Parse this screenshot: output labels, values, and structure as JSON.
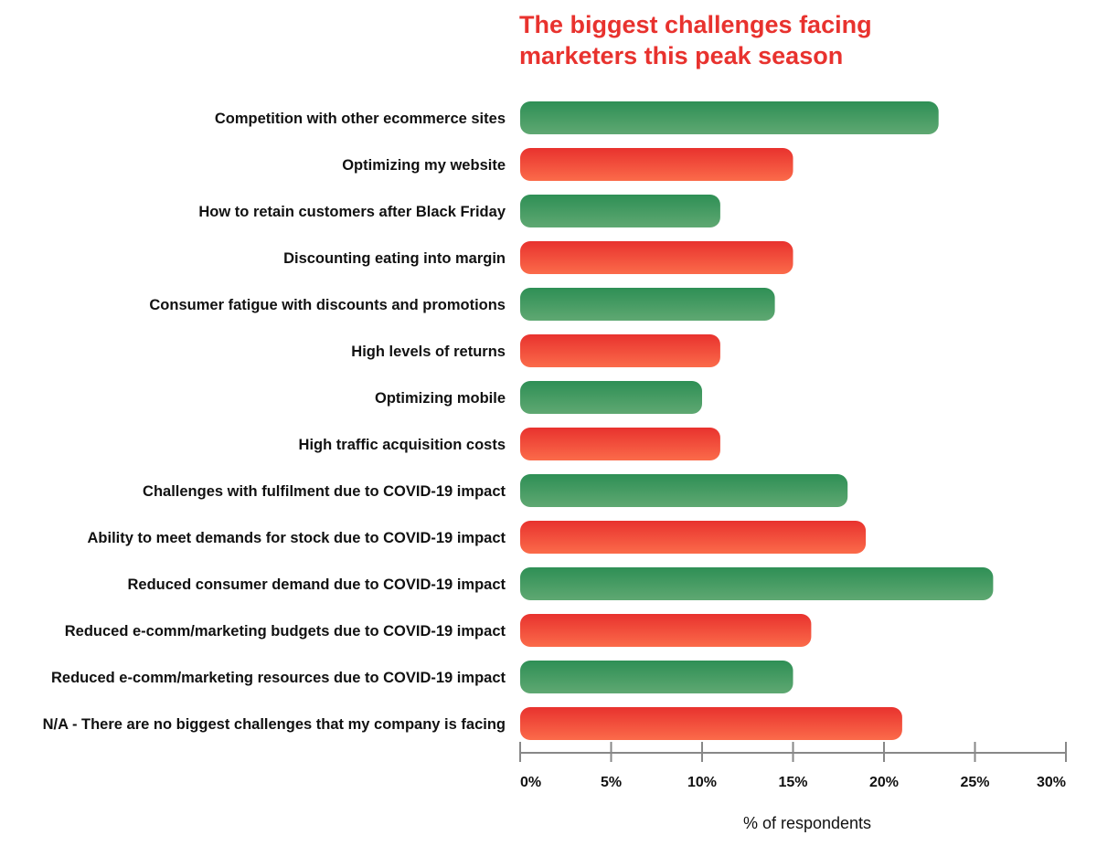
{
  "chart_data": {
    "type": "bar",
    "orientation": "horizontal",
    "title_lines": [
      "The biggest challenges facing",
      "marketers this peak season"
    ],
    "xlabel": "% of respondents",
    "ylabel": "",
    "xlim": [
      0,
      30
    ],
    "xticks": [
      0,
      5,
      10,
      15,
      20,
      25,
      30
    ],
    "xtick_labels": [
      "0%",
      "5%",
      "10%",
      "15%",
      "20%",
      "25%",
      "30%"
    ],
    "grid": false,
    "legend": "none",
    "categories": [
      "Competition with other ecommerce sites",
      "Optimizing my website",
      "How to retain customers after Black Friday",
      "Discounting eating into margin",
      "Consumer fatigue with discounts and promotions",
      "High levels of returns",
      "Optimizing mobile",
      "High traffic acquisition costs",
      "Challenges with fulfilment due to COVID-19 impact",
      "Ability to meet demands for stock due to COVID-19 impact",
      "Reduced consumer demand due to COVID-19 impact",
      "Reduced e-comm/marketing budgets due to COVID-19 impact",
      "Reduced e-comm/marketing resources due to COVID-19 impact",
      "N/A - There are no biggest challenges that my company is facing"
    ],
    "values": [
      23,
      15,
      11,
      15,
      14,
      11,
      10,
      11,
      18,
      19,
      26,
      16,
      15,
      21
    ],
    "bar_colors": [
      "green",
      "red",
      "green",
      "red",
      "green",
      "red",
      "green",
      "red",
      "green",
      "red",
      "green",
      "red",
      "green",
      "red"
    ]
  },
  "colors": {
    "title": "#e8322e",
    "green_top": "#2e8f55",
    "green_bottom": "#5fa872",
    "red_top": "#e8322e",
    "red_bottom": "#fb6b4a",
    "axis": "#888888",
    "text": "#111111"
  }
}
